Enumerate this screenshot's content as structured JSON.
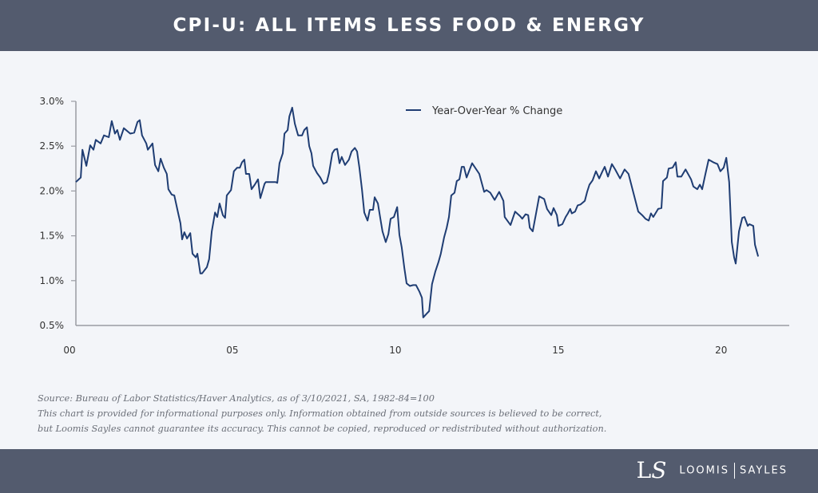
{
  "header": {
    "title": "CPI-U: ALL ITEMS LESS FOOD & ENERGY"
  },
  "chart_data": {
    "type": "line",
    "title": "CPI-U: ALL ITEMS LESS FOOD & ENERGY",
    "xlabel": "",
    "ylabel": "",
    "xlim": [
      2000,
      2021.3
    ],
    "ylim": [
      0.5,
      3.0
    ],
    "x_ticks": [
      2000,
      2005,
      2010,
      2015,
      2020
    ],
    "x_tick_labels": [
      "00",
      "05",
      "10",
      "15",
      "20"
    ],
    "y_ticks": [
      0.5,
      1.0,
      1.5,
      2.0,
      2.5,
      3.0
    ],
    "y_tick_labels": [
      "0.5%",
      "1.0%",
      "1.5%",
      "2.0%",
      "2.5%",
      "3.0%"
    ],
    "grid": false,
    "legend_position": "top-center",
    "colors": {
      "series": "#1f3d73",
      "axis": "#9a9ca3"
    },
    "series": [
      {
        "name": "Year-Over-Year % Change",
        "x": [
          2000.0,
          2000.15,
          2000.2,
          2000.32,
          2000.44,
          2000.54,
          2000.61,
          2000.76,
          2000.86,
          2001.01,
          2001.1,
          2001.2,
          2001.27,
          2001.35,
          2001.47,
          2001.67,
          2001.79,
          2001.89,
          2001.96,
          2002.03,
          2002.16,
          2002.21,
          2002.35,
          2002.43,
          2002.53,
          2002.6,
          2002.7,
          2002.79,
          2002.84,
          2002.94,
          2003.02,
          2003.14,
          2003.21,
          2003.26,
          2003.33,
          2003.41,
          2003.51,
          2003.58,
          2003.68,
          2003.73,
          2003.82,
          2003.87,
          2004.02,
          2004.09,
          2004.17,
          2004.27,
          2004.34,
          2004.41,
          2004.51,
          2004.58,
          2004.63,
          2004.76,
          2004.85,
          2004.95,
          2005.03,
          2005.1,
          2005.17,
          2005.22,
          2005.32,
          2005.39,
          2005.49,
          2005.59,
          2005.66,
          2005.79,
          2005.83,
          2006.13,
          2006.18,
          2006.25,
          2006.35,
          2006.4,
          2006.5,
          2006.55,
          2006.64,
          2006.72,
          2006.82,
          2006.94,
          2007.01,
          2007.09,
          2007.16,
          2007.23,
          2007.28,
          2007.4,
          2007.5,
          2007.6,
          2007.7,
          2007.77,
          2007.87,
          2007.94,
          2008.02,
          2008.09,
          2008.16,
          2008.26,
          2008.38,
          2008.46,
          2008.56,
          2008.63,
          2008.7,
          2008.78,
          2008.85,
          2008.95,
          2009.02,
          2009.12,
          2009.17,
          2009.27,
          2009.34,
          2009.41,
          2009.51,
          2009.59,
          2009.66,
          2009.76,
          2009.86,
          2009.93,
          2010.0,
          2010.08,
          2010.15,
          2010.25,
          2010.35,
          2010.44,
          2010.54,
          2010.62,
          2010.66,
          2010.76,
          2010.84,
          2010.93,
          2011.03,
          2011.13,
          2011.2,
          2011.3,
          2011.38,
          2011.45,
          2011.52,
          2011.62,
          2011.69,
          2011.77,
          2011.84,
          2011.91,
          2011.99,
          2012.16,
          2012.38,
          2012.53,
          2012.6,
          2012.72,
          2012.85,
          2012.99,
          2013.12,
          2013.16,
          2013.34,
          2013.48,
          2013.63,
          2013.7,
          2013.8,
          2013.88,
          2013.93,
          2014.02,
          2014.22,
          2014.37,
          2014.46,
          2014.59,
          2014.66,
          2014.76,
          2014.81,
          2014.93,
          2015.03,
          2015.1,
          2015.17,
          2015.22,
          2015.32,
          2015.4,
          2015.49,
          2015.62,
          2015.69,
          2015.76,
          2015.86,
          2015.96,
          2016.06,
          2016.16,
          2016.23,
          2016.33,
          2016.45,
          2016.55,
          2016.7,
          2016.84,
          2016.96,
          2017.11,
          2017.26,
          2017.38,
          2017.48,
          2017.58,
          2017.65,
          2017.72,
          2017.87,
          2017.97,
          2018.02,
          2018.14,
          2018.19,
          2018.31,
          2018.41,
          2018.46,
          2018.58,
          2018.71,
          2018.88,
          2018.95,
          2019.07,
          2019.15,
          2019.22,
          2019.32,
          2019.42,
          2019.56,
          2019.69,
          2019.78,
          2019.88,
          2019.96,
          2020.05,
          2020.13,
          2020.2,
          2020.25,
          2020.35,
          2020.45,
          2020.52,
          2020.62,
          2020.67,
          2020.79,
          2020.84,
          2020.94
        ],
        "values": [
          2.1,
          2.15,
          2.46,
          2.28,
          2.51,
          2.46,
          2.57,
          2.53,
          2.62,
          2.6,
          2.78,
          2.64,
          2.68,
          2.57,
          2.7,
          2.64,
          2.65,
          2.77,
          2.79,
          2.62,
          2.53,
          2.46,
          2.53,
          2.29,
          2.22,
          2.36,
          2.26,
          2.19,
          2.02,
          1.96,
          1.95,
          1.75,
          1.64,
          1.46,
          1.54,
          1.47,
          1.53,
          1.3,
          1.26,
          1.3,
          1.08,
          1.08,
          1.15,
          1.24,
          1.55,
          1.76,
          1.71,
          1.86,
          1.73,
          1.7,
          1.95,
          2.01,
          2.22,
          2.26,
          2.26,
          2.32,
          2.35,
          2.19,
          2.19,
          2.02,
          2.07,
          2.13,
          1.92,
          2.08,
          2.1,
          2.1,
          2.09,
          2.31,
          2.42,
          2.64,
          2.68,
          2.83,
          2.93,
          2.75,
          2.62,
          2.62,
          2.68,
          2.71,
          2.5,
          2.42,
          2.28,
          2.2,
          2.15,
          2.08,
          2.1,
          2.2,
          2.42,
          2.46,
          2.47,
          2.31,
          2.38,
          2.29,
          2.35,
          2.44,
          2.48,
          2.44,
          2.26,
          2.02,
          1.76,
          1.67,
          1.79,
          1.79,
          1.93,
          1.86,
          1.7,
          1.55,
          1.43,
          1.52,
          1.69,
          1.71,
          1.82,
          1.51,
          1.37,
          1.14,
          0.97,
          0.94,
          0.95,
          0.95,
          0.88,
          0.81,
          0.59,
          0.63,
          0.66,
          0.96,
          1.1,
          1.21,
          1.3,
          1.48,
          1.59,
          1.71,
          1.95,
          1.98,
          2.11,
          2.13,
          2.27,
          2.27,
          2.15,
          2.31,
          2.19,
          1.99,
          2.01,
          1.98,
          1.9,
          1.99,
          1.89,
          1.71,
          1.62,
          1.77,
          1.72,
          1.69,
          1.74,
          1.73,
          1.59,
          1.55,
          1.94,
          1.91,
          1.8,
          1.73,
          1.81,
          1.73,
          1.61,
          1.63,
          1.71,
          1.75,
          1.8,
          1.75,
          1.77,
          1.84,
          1.85,
          1.89,
          1.99,
          2.07,
          2.12,
          2.22,
          2.14,
          2.22,
          2.27,
          2.16,
          2.3,
          2.24,
          2.14,
          2.24,
          2.19,
          1.98,
          1.77,
          1.73,
          1.69,
          1.67,
          1.75,
          1.71,
          1.8,
          1.81,
          2.11,
          2.15,
          2.25,
          2.26,
          2.32,
          2.16,
          2.16,
          2.24,
          2.13,
          2.05,
          2.02,
          2.07,
          2.02,
          2.19,
          2.35,
          2.32,
          2.3,
          2.22,
          2.26,
          2.37,
          2.1,
          1.43,
          1.26,
          1.19,
          1.55,
          1.7,
          1.71,
          1.61,
          1.63,
          1.61,
          1.4,
          1.27
        ]
      }
    ]
  },
  "notes": {
    "source": "Source: Bureau of Labor Statistics/Haver Analytics, as of 3/10/2021, SA, 1982-84=100",
    "disclaimer_1": "This chart is provided for informational purposes only. Information obtained from outside sources is believed to be correct,",
    "disclaimer_2": "but Loomis Sayles cannot guarantee its accuracy. This cannot be copied, reproduced or redistributed without authorization."
  },
  "footer": {
    "logo_mark": "LS",
    "logo_left": "LOOMIS",
    "logo_right": "SAYLES"
  }
}
